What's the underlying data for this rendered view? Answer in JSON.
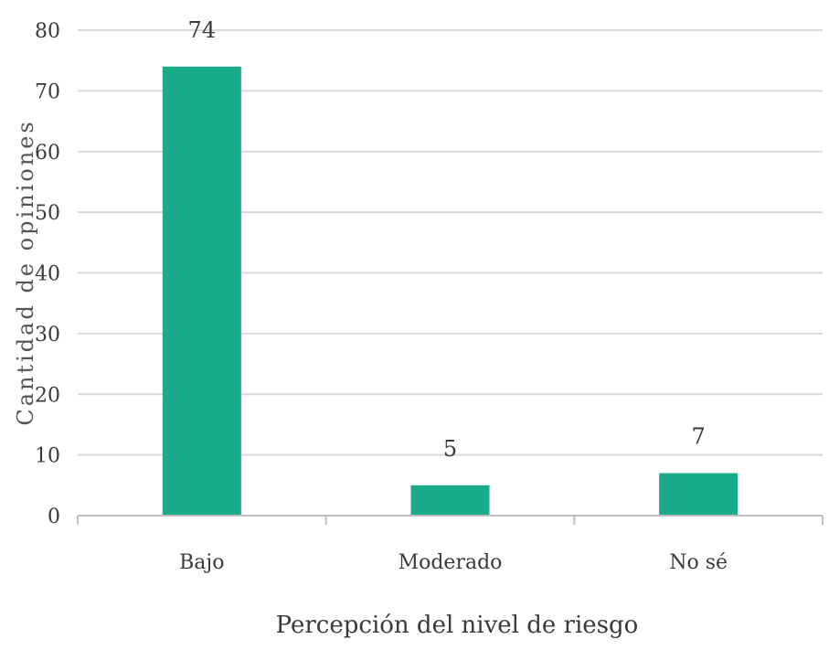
{
  "chart_data": {
    "type": "bar",
    "title": "",
    "xlabel": "Percepción del nivel de riesgo",
    "ylabel": "Cantidad de opiniones",
    "categories": [
      "Bajo",
      "Moderado",
      "No sé"
    ],
    "values": [
      74,
      5,
      7
    ],
    "ylim": [
      0,
      80
    ],
    "yticks": [
      0,
      10,
      20,
      30,
      40,
      50,
      60,
      70,
      80
    ],
    "grid": true,
    "legend": "none",
    "bar_color": "#1aab8a",
    "grid_color": "#d9d9d9",
    "axis_color": "#bfbfbf"
  }
}
